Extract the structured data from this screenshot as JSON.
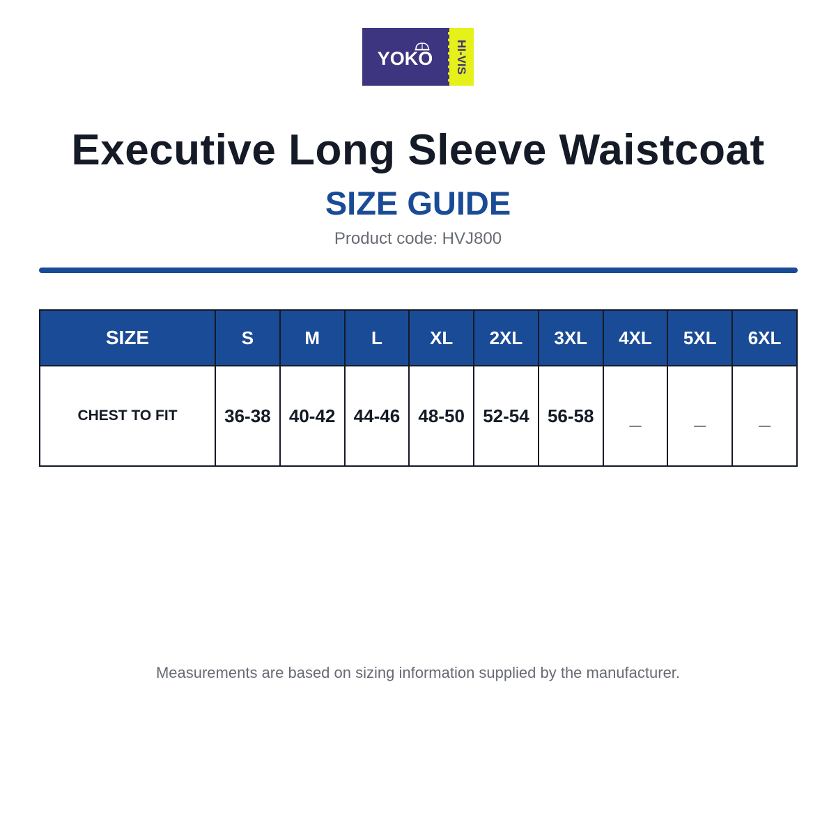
{
  "logo": {
    "brand": "YOKO",
    "sub": "HI-VIS",
    "colors": {
      "main": "#3d3580",
      "accent": "#e6f01a"
    }
  },
  "header": {
    "title": "Executive Long Sleeve Waistcoat",
    "subtitle": "SIZE GUIDE",
    "product_code": "Product code: HVJ800"
  },
  "table": {
    "header_label": "SIZE",
    "sizes": [
      "S",
      "M",
      "L",
      "XL",
      "2XL",
      "3XL",
      "4XL",
      "5XL",
      "6XL"
    ],
    "row_label": "CHEST TO FIT",
    "values": [
      "36-38",
      "40-42",
      "44-46",
      "48-50",
      "52-54",
      "56-58",
      "_",
      "_",
      "_"
    ]
  },
  "footer": {
    "note": "Measurements are based on sizing information supplied by the manufacturer."
  },
  "colors": {
    "accent_blue": "#1a4b96",
    "text_dark": "#141a26",
    "text_muted": "#676b73"
  }
}
